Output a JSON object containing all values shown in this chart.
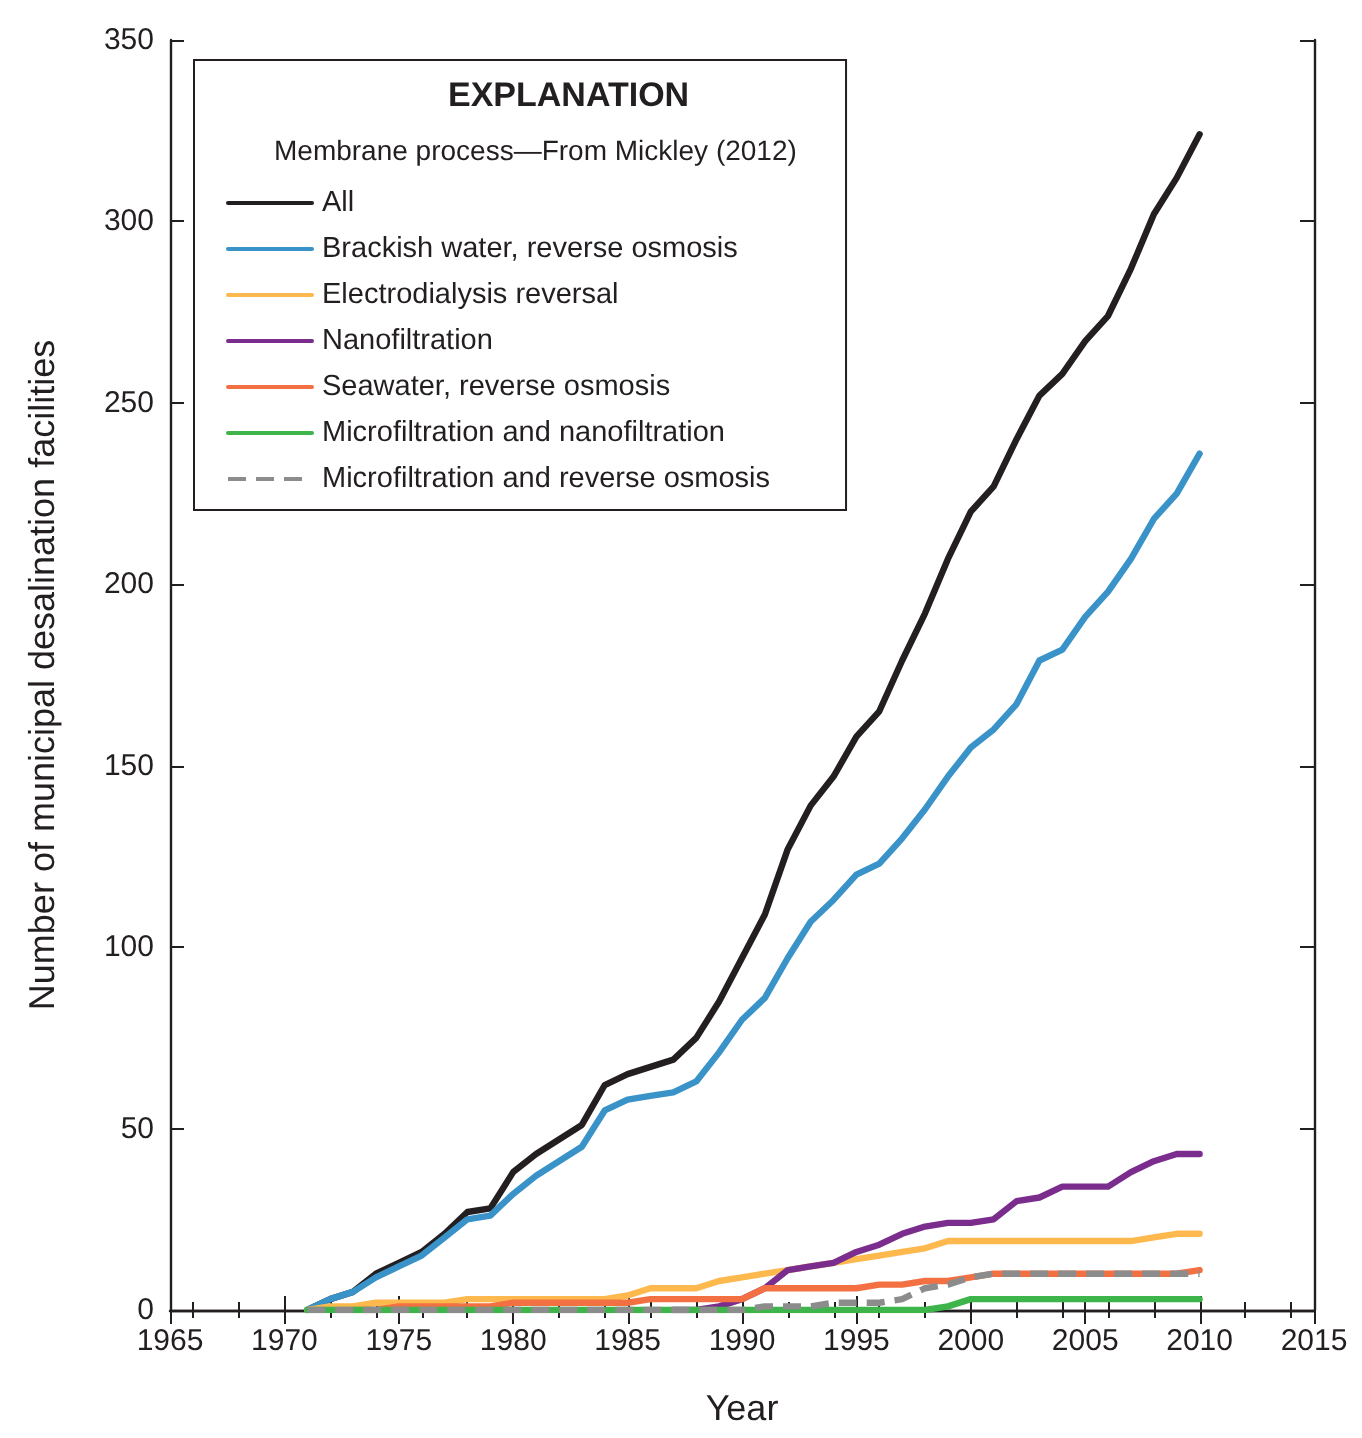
{
  "chart_data": {
    "type": "line",
    "xlabel": "Year",
    "ylabel": "Number of municipal desalination facilities",
    "legend_title": "EXPLANATION",
    "annotations": [
      "Membrane process—From Mickley (2012)"
    ],
    "x": [
      1971,
      1972,
      1973,
      1974,
      1975,
      1976,
      1977,
      1978,
      1979,
      1980,
      1981,
      1982,
      1983,
      1984,
      1985,
      1986,
      1987,
      1988,
      1989,
      1990,
      1991,
      1992,
      1993,
      1994,
      1995,
      1996,
      1997,
      1998,
      1999,
      2000,
      2001,
      2002,
      2003,
      2004,
      2005,
      2006,
      2007,
      2008,
      2009,
      2010
    ],
    "series": [
      {
        "name": "All",
        "color": "#231f20",
        "values": [
          0,
          3,
          5,
          10,
          13,
          16,
          21,
          27,
          28,
          38,
          43,
          47,
          51,
          62,
          65,
          67,
          69,
          75,
          85,
          97,
          109,
          127,
          139,
          147,
          158,
          165,
          179,
          192,
          207,
          220,
          227,
          240,
          252,
          258,
          267,
          274,
          287,
          302,
          312,
          324
        ]
      },
      {
        "name": "Brackish water, reverse osmosis",
        "color": "#3a93c8",
        "values": [
          0,
          3,
          5,
          9,
          12,
          15,
          20,
          25,
          26,
          32,
          37,
          41,
          45,
          55,
          58,
          59,
          60,
          63,
          71,
          80,
          86,
          97,
          107,
          113,
          120,
          123,
          130,
          138,
          147,
          155,
          160,
          167,
          179,
          182,
          191,
          198,
          207,
          218,
          225,
          236
        ]
      },
      {
        "name": "Electrodialysis reversal",
        "color": "#fdb94e",
        "values": [
          0,
          1,
          1,
          2,
          2,
          2,
          2,
          3,
          3,
          3,
          3,
          3,
          3,
          3,
          4,
          6,
          6,
          6,
          8,
          9,
          10,
          11,
          12,
          13,
          14,
          15,
          16,
          17,
          19,
          19,
          19,
          19,
          19,
          19,
          19,
          19,
          19,
          20,
          21,
          21
        ]
      },
      {
        "name": "Nanofiltration",
        "color": "#7b2d8e",
        "values": [
          null,
          null,
          null,
          null,
          null,
          null,
          null,
          null,
          null,
          null,
          null,
          null,
          null,
          null,
          null,
          null,
          0,
          0,
          1,
          3,
          6,
          11,
          12,
          13,
          16,
          18,
          21,
          23,
          24,
          24,
          25,
          30,
          31,
          34,
          34,
          34,
          38,
          41,
          43,
          43
        ]
      },
      {
        "name": "Seawater, reverse osmosis",
        "color": "#f37043",
        "values": [
          null,
          null,
          0,
          0,
          1,
          1,
          1,
          1,
          1,
          2,
          2,
          2,
          2,
          2,
          2,
          3,
          3,
          3,
          3,
          3,
          6,
          6,
          6,
          6,
          6,
          7,
          7,
          8,
          8,
          9,
          10,
          10,
          10,
          10,
          10,
          10,
          10,
          10,
          10,
          11
        ]
      },
      {
        "name": "Microfiltration and nanofiltration",
        "color": "#3db54a",
        "values": [
          0,
          0,
          0,
          0,
          0,
          0,
          0,
          0,
          0,
          0,
          0,
          0,
          0,
          0,
          0,
          0,
          0,
          0,
          0,
          0,
          0,
          0,
          0,
          0,
          0,
          0,
          0,
          0,
          1,
          3,
          3,
          3,
          3,
          3,
          3,
          3,
          3,
          3,
          3,
          3
        ]
      },
      {
        "name": "Microfiltration and reverse osmosis",
        "color": "#8c8c8c",
        "line_style": "dashed",
        "values": [
          0,
          0,
          0,
          0,
          0,
          0,
          0,
          0,
          0,
          0,
          0,
          0,
          0,
          0,
          0,
          0,
          0,
          0,
          0,
          0,
          1,
          1,
          1,
          2,
          2,
          2,
          3,
          6,
          7,
          9,
          10,
          10,
          10,
          10,
          10,
          10,
          10,
          10,
          10,
          10
        ]
      }
    ],
    "xlim": [
      1965,
      2015
    ],
    "xticks": [
      1965,
      1970,
      1975,
      1980,
      1985,
      1990,
      1995,
      2000,
      2005,
      2010,
      2015
    ],
    "ylim": [
      0,
      350
    ],
    "yticks": [
      0,
      50,
      100,
      150,
      200,
      250,
      300,
      350
    ],
    "grid": false,
    "legend": "top left",
    "marker": "none",
    "line_style": "solid"
  }
}
